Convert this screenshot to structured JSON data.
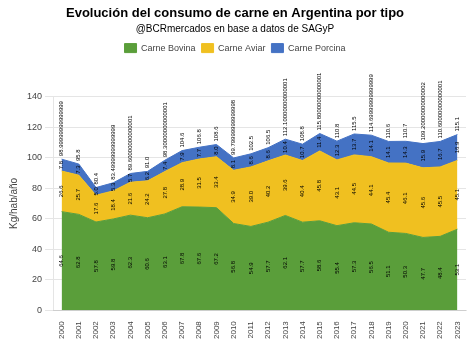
{
  "chart_data": {
    "type": "area",
    "title": "Evolución del consumo de carne en Argentina por tipo",
    "subtitle": "@BCRmercados en base a datos de SAGyP",
    "y_label": "Kg/hab/año",
    "categories": [
      2000,
      2001,
      2002,
      2003,
      2004,
      2005,
      2006,
      2007,
      2008,
      2009,
      2010,
      2011,
      2012,
      2013,
      2014,
      2015,
      2016,
      2017,
      2018,
      2019,
      2020,
      2021,
      2022,
      2023
    ],
    "series": [
      {
        "name": "Carne Bovina",
        "color": "#5a9e3a",
        "values": [
          64.6,
          62.8,
          57.8,
          59.8,
          62.3,
          60.6,
          63.1,
          67.8,
          67.6,
          67.2,
          56.8,
          54.9,
          57.7,
          62.1,
          57.7,
          58.6,
          55.4,
          57.3,
          56.5,
          51.1,
          50.3,
          47.7,
          48.4,
          53.1
        ],
        "value_labels": [
          "64.6",
          "62.8",
          "57.8",
          "59.8",
          "62.3",
          "60.6",
          "63.1",
          "67.8",
          "67.6",
          "67.2",
          "56.8",
          "54.9",
          "57.7",
          "62.1",
          "57.7",
          "58.6",
          "55.4",
          "57.3",
          "56.5",
          "51.1",
          "50.3",
          "47.7",
          "48.4",
          "53.1"
        ]
      },
      {
        "name": "Carne Aviar",
        "color": "#f0c020",
        "values": [
          26.6,
          25.7,
          17.6,
          18.4,
          21.6,
          24.2,
          27.8,
          28.9,
          31.5,
          33.4,
          34.9,
          39.0,
          40.2,
          39.6,
          40.4,
          45.8,
          43.1,
          44.5,
          44.1,
          45.4,
          46.1,
          45.6,
          45.5,
          45.1
        ],
        "value_labels": [
          "26.6",
          "25.7",
          "17.6",
          "18.4",
          "21.6",
          "24.2",
          "27.8",
          "28.9",
          "31.5",
          "33.4",
          "34.9",
          "39.0",
          "40.2",
          "39.6",
          "40.4",
          "45.8",
          "43.1",
          "44.5",
          "44.1",
          "45.4",
          "46.1",
          "45.6",
          "45.5",
          "45.1"
        ]
      },
      {
        "name": "Carne Porcina",
        "color": "#4472c4",
        "values": [
          7.8,
          7.3,
          5.0,
          5.3,
          5.7,
          6.2,
          7.4,
          7.9,
          7.7,
          8.0,
          8.1,
          8.6,
          8.6,
          10.4,
          10.7,
          11.4,
          12.3,
          13.7,
          14.1,
          14.1,
          14.3,
          15.9,
          16.7,
          16.9
        ],
        "value_labels": [
          "7.8",
          "7.3",
          "5.0",
          "5.3",
          "5.7",
          "6.2",
          "7.4",
          "7.9",
          "7.7",
          "8.0",
          "8.1",
          "8.6",
          "8.6",
          "10.4",
          "10.7",
          "11.4",
          "12.3",
          "13.7",
          "14.1",
          "14.1",
          "14.3",
          "15.9",
          "16.7",
          "16.9"
        ]
      }
    ],
    "totals": [
      98.99999999999999,
      95.8,
      80.4,
      83.49999999999999,
      89.60000000000001,
      91.0,
      98.30000000000001,
      104.6,
      106.8,
      108.6,
      99.79999999999998,
      102.5,
      106.5,
      112.10000000000001,
      108.8,
      115.80000000000001,
      110.8,
      115.5,
      114.69999999999999,
      110.6,
      110.7,
      109.20000000000002,
      110.60000000000001,
      115.1
    ],
    "total_labels": [
      "98.99999999999999",
      "95.8",
      "80.4",
      "83.49999999999999",
      "89.60000000000001",
      "91.0",
      "98.30000000000001",
      "104.6",
      "106.8",
      "108.6",
      "99.79999999999998",
      "102.5",
      "106.5",
      "112.10000000000001",
      "108.8",
      "115.80000000000001",
      "110.8",
      "115.5",
      "114.69999999999999",
      "110.6",
      "110.7",
      "109.20000000000002",
      "110.60000000000001",
      "115.1"
    ],
    "ylim": [
      0,
      140
    ],
    "yticks": [
      0,
      20,
      40,
      60,
      80,
      100,
      120,
      140
    ],
    "stacked": true,
    "data_labels": true,
    "grid": "y",
    "legend": "top"
  }
}
